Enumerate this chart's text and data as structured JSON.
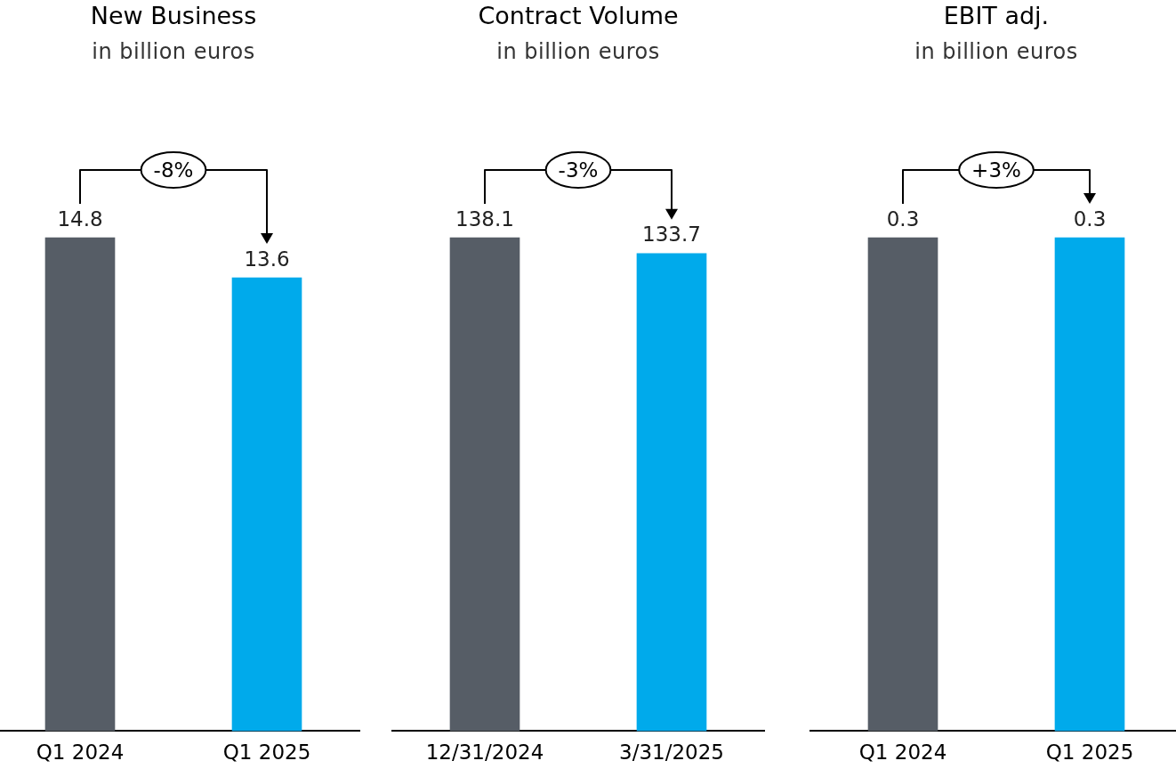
{
  "chart_data": [
    {
      "type": "bar",
      "title": "New Business",
      "subtitle": "in billion euros",
      "categories": [
        "Q1 2024",
        "Q1 2025"
      ],
      "values": [
        14.8,
        13.6
      ],
      "colors": [
        "#565d66",
        "#00aaeb"
      ],
      "data_labels": true,
      "annotations": [
        "-8%"
      ]
    },
    {
      "type": "bar",
      "title": "Contract Volume",
      "subtitle": "in billion euros",
      "categories": [
        "12/31/2024",
        "3/31/2025"
      ],
      "values": [
        138.1,
        133.7
      ],
      "colors": [
        "#565d66",
        "#00aaeb"
      ],
      "data_labels": true,
      "annotations": [
        "-3%"
      ]
    },
    {
      "type": "bar",
      "title": "EBIT adj.",
      "subtitle": "in billion euros",
      "categories": [
        "Q1 2024",
        "Q1 2025"
      ],
      "values": [
        0.3,
        0.3
      ],
      "colors": [
        "#565d66",
        "#00aaeb"
      ],
      "data_labels": true,
      "annotations": [
        "+3%"
      ]
    }
  ]
}
